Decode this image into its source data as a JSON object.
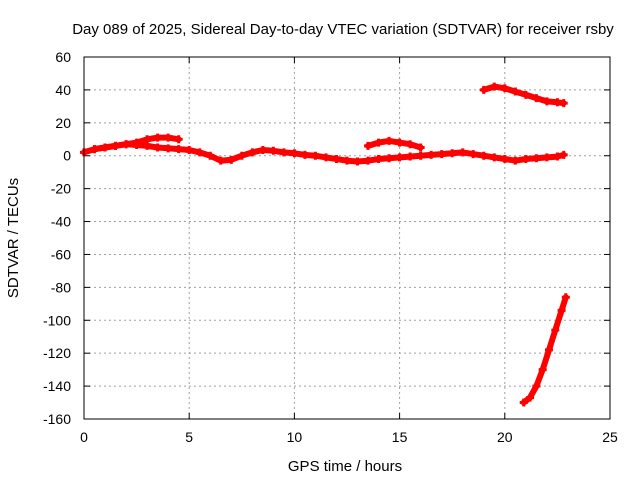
{
  "chart_data": {
    "type": "scatter",
    "title": "Day 089 of 2025, Sidereal Day-to-day VTEC variation (SDTVAR) for receiver rsby",
    "xlabel": "GPS time / hours",
    "ylabel": "SDTVAR / TECUs",
    "xlim": [
      0,
      25
    ],
    "ylim": [
      -160,
      60
    ],
    "xticks": [
      0,
      5,
      10,
      15,
      20,
      25
    ],
    "xtick_labels": [
      "0",
      "5",
      "10",
      "15",
      "20",
      "25"
    ],
    "yticks": [
      -160,
      -140,
      -120,
      -100,
      -80,
      -60,
      -40,
      -20,
      0,
      20,
      40,
      60
    ],
    "ytick_labels": [
      "-160",
      "-140",
      "-120",
      "-100",
      "-80",
      "-60",
      "-40",
      "-20",
      "0",
      "20",
      "40",
      "60"
    ],
    "grid": true,
    "marker_color": "#ff0000",
    "series": [
      {
        "name": "main",
        "x": [
          0,
          0.5,
          1,
          1.5,
          2,
          2.5,
          3,
          3.5,
          4,
          4.5,
          5,
          5.5,
          6,
          6.5,
          7,
          7.5,
          8,
          8.5,
          9,
          9.5,
          10,
          10.5,
          11,
          11.5,
          12,
          12.5,
          13,
          13.5,
          14,
          14.5,
          15,
          15.5,
          16,
          16.5,
          17,
          17.5,
          18,
          18.5,
          19,
          19.5,
          20,
          20.5,
          21,
          21.5,
          22,
          22.5,
          22.8
        ],
        "y": [
          2,
          4,
          5,
          6,
          7,
          6.5,
          6,
          5,
          4.5,
          4,
          3.5,
          2,
          0,
          -3,
          -2.5,
          0,
          2,
          3.5,
          3,
          2,
          1.5,
          0.5,
          0,
          -1,
          -2,
          -3,
          -3.5,
          -3,
          -2,
          -1.5,
          -1,
          -0.5,
          0,
          0.5,
          1,
          1.5,
          2,
          1,
          0,
          -1,
          -2,
          -3,
          -2,
          -1.5,
          -1,
          -0.5,
          0.5
        ]
      },
      {
        "name": "upper-arc",
        "x": [
          0.5,
          1,
          1.5,
          2,
          2.5,
          3,
          3.5,
          4,
          4.5
        ],
        "y": [
          4,
          5,
          6,
          7,
          8,
          10,
          11,
          11,
          10
        ]
      },
      {
        "name": "mid-arc",
        "x": [
          13.5,
          14,
          14.5,
          15,
          15.5,
          16
        ],
        "y": [
          6,
          8,
          9,
          8,
          7,
          5
        ]
      },
      {
        "name": "high-arc",
        "x": [
          19,
          19.5,
          20,
          20.5,
          21,
          21.5,
          22,
          22.5,
          22.8
        ],
        "y": [
          40,
          42,
          41,
          39,
          37,
          35,
          33,
          32.5,
          32
        ]
      },
      {
        "name": "drop-arc",
        "x": [
          20.9,
          21.2,
          21.5,
          21.8,
          22.1,
          22.4,
          22.7,
          22.9
        ],
        "y": [
          -150,
          -147,
          -140,
          -130,
          -118,
          -106,
          -94,
          -86
        ]
      }
    ]
  }
}
